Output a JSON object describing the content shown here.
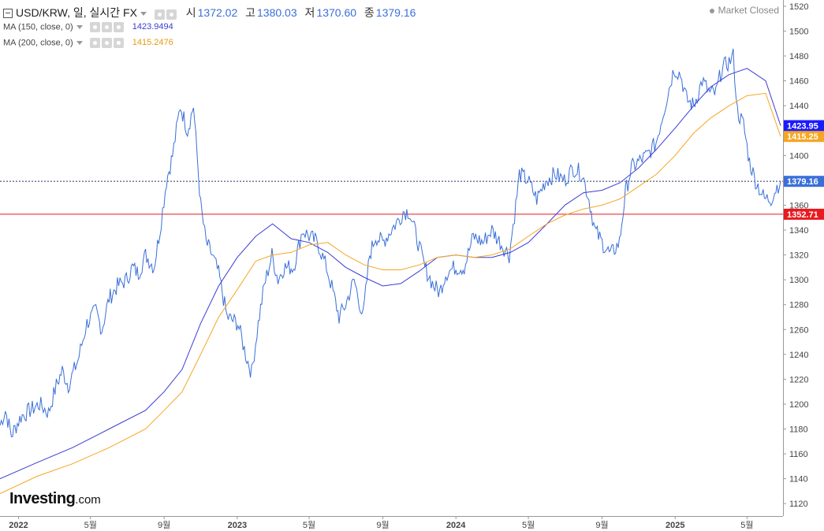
{
  "header": {
    "symbol": "USD/KRW, 일, 실시간 FX",
    "open_label": "시",
    "open": "1372.02",
    "high_label": "고",
    "high": "1380.03",
    "low_label": "저",
    "low": "1370.60",
    "close_label": "종",
    "close": "1379.16",
    "market_status": "Market Closed"
  },
  "indicators": [
    {
      "label": "MA (150, close, 0)",
      "value": "1423.9494",
      "color": "#3b3bd6"
    },
    {
      "label": "MA (200, close, 0)",
      "value": "1415.2476",
      "color": "#f5a623"
    }
  ],
  "logo": {
    "main": "Investing",
    "suffix": ".com"
  },
  "chart_data": {
    "type": "line",
    "xlim": [
      "2021-12-01",
      "2025-06-30"
    ],
    "ylim": [
      1110,
      1525
    ],
    "yticks": [
      1120,
      1140,
      1160,
      1180,
      1200,
      1220,
      1240,
      1260,
      1280,
      1300,
      1320,
      1340,
      1360,
      1380,
      1400,
      1420,
      1440,
      1460,
      1480,
      1500,
      1520
    ],
    "xticks": [
      {
        "date": "2022-01-01",
        "label": "2022",
        "bold": true
      },
      {
        "date": "2022-05-01",
        "label": "5월",
        "bold": false
      },
      {
        "date": "2022-09-01",
        "label": "9월",
        "bold": false
      },
      {
        "date": "2023-01-01",
        "label": "2023",
        "bold": true
      },
      {
        "date": "2023-05-01",
        "label": "5월",
        "bold": false
      },
      {
        "date": "2023-09-01",
        "label": "9월",
        "bold": false
      },
      {
        "date": "2024-01-01",
        "label": "2024",
        "bold": true
      },
      {
        "date": "2024-05-01",
        "label": "5월",
        "bold": false
      },
      {
        "date": "2024-09-01",
        "label": "9월",
        "bold": false
      },
      {
        "date": "2025-01-01",
        "label": "2025",
        "bold": true
      },
      {
        "date": "2025-05-01",
        "label": "5월",
        "bold": false
      }
    ],
    "series": [
      {
        "color": "#3a6fd8",
        "x": [
          "2021-12-01",
          "2021-12-10",
          "2021-12-20",
          "2022-01-05",
          "2022-01-20",
          "2022-02-05",
          "2022-02-20",
          "2022-03-05",
          "2022-03-15",
          "2022-03-25",
          "2022-04-10",
          "2022-04-25",
          "2022-05-10",
          "2022-05-20",
          "2022-06-01",
          "2022-06-15",
          "2022-06-30",
          "2022-07-10",
          "2022-07-20",
          "2022-08-01",
          "2022-08-15",
          "2022-08-25",
          "2022-09-05",
          "2022-09-15",
          "2022-09-28",
          "2022-10-10",
          "2022-10-20",
          "2022-11-01",
          "2022-11-10",
          "2022-11-20",
          "2022-12-01",
          "2022-12-15",
          "2023-01-02",
          "2023-01-15",
          "2023-01-25",
          "2023-02-05",
          "2023-02-15",
          "2023-02-28",
          "2023-03-10",
          "2023-03-20",
          "2023-04-05",
          "2023-04-20",
          "2023-05-01",
          "2023-05-15",
          "2023-05-30",
          "2023-06-10",
          "2023-06-20",
          "2023-07-01",
          "2023-07-15",
          "2023-07-30",
          "2023-08-10",
          "2023-08-20",
          "2023-09-01",
          "2023-09-15",
          "2023-09-30",
          "2023-10-05",
          "2023-10-15",
          "2023-10-30",
          "2023-11-10",
          "2023-11-25",
          "2023-12-05",
          "2023-12-15",
          "2023-12-30",
          "2024-01-15",
          "2024-01-30",
          "2024-02-15",
          "2024-03-01",
          "2024-03-15",
          "2024-03-30",
          "2024-04-10",
          "2024-04-16",
          "2024-04-30",
          "2024-05-15",
          "2024-05-30",
          "2024-06-15",
          "2024-06-30",
          "2024-07-15",
          "2024-07-30",
          "2024-08-10",
          "2024-08-20",
          "2024-09-01",
          "2024-09-15",
          "2024-09-30",
          "2024-10-10",
          "2024-10-20",
          "2024-11-01",
          "2024-11-15",
          "2024-11-30",
          "2024-12-10",
          "2024-12-20",
          "2024-12-30",
          "2025-01-10",
          "2025-01-20",
          "2025-02-01",
          "2025-02-15",
          "2025-02-28",
          "2025-03-10",
          "2025-03-20",
          "2025-04-01",
          "2025-04-08",
          "2025-04-15",
          "2025-04-25",
          "2025-05-05",
          "2025-05-15",
          "2025-05-30",
          "2025-06-10",
          "2025-06-20",
          "2025-06-26"
        ],
        "values": [
          1183,
          1195,
          1175,
          1190,
          1195,
          1200,
          1193,
          1215,
          1227,
          1215,
          1235,
          1265,
          1275,
          1260,
          1285,
          1295,
          1300,
          1310,
          1305,
          1320,
          1310,
          1340,
          1380,
          1400,
          1440,
          1420,
          1440,
          1360,
          1330,
          1320,
          1305,
          1270,
          1265,
          1240,
          1225,
          1265,
          1295,
          1320,
          1300,
          1310,
          1310,
          1340,
          1335,
          1330,
          1310,
          1290,
          1270,
          1280,
          1300,
          1270,
          1320,
          1335,
          1330,
          1340,
          1350,
          1355,
          1355,
          1330,
          1310,
          1295,
          1290,
          1305,
          1310,
          1310,
          1335,
          1330,
          1340,
          1330,
          1320,
          1360,
          1385,
          1380,
          1365,
          1380,
          1385,
          1380,
          1390,
          1385,
          1365,
          1340,
          1330,
          1320,
          1330,
          1370,
          1390,
          1395,
          1400,
          1410,
          1430,
          1450,
          1470,
          1465,
          1445,
          1440,
          1460,
          1450,
          1450,
          1470,
          1475,
          1480,
          1435,
          1425,
          1395,
          1380,
          1365,
          1365,
          1375,
          1379.16
        ]
      },
      {
        "name": "MA (150, close, 0)",
        "color": "#3b3bd6",
        "x": [
          "2021-12-01",
          "2022-02-01",
          "2022-04-01",
          "2022-06-01",
          "2022-08-01",
          "2022-09-01",
          "2022-10-01",
          "2022-11-01",
          "2022-12-01",
          "2023-01-01",
          "2023-02-01",
          "2023-03-01",
          "2023-04-01",
          "2023-05-01",
          "2023-06-01",
          "2023-07-01",
          "2023-08-01",
          "2023-09-01",
          "2023-10-01",
          "2023-11-01",
          "2023-12-01",
          "2024-01-01",
          "2024-02-01",
          "2024-03-01",
          "2024-04-01",
          "2024-05-01",
          "2024-06-01",
          "2024-07-01",
          "2024-08-01",
          "2024-09-01",
          "2024-10-01",
          "2024-11-01",
          "2024-12-01",
          "2025-01-01",
          "2025-02-01",
          "2025-03-01",
          "2025-04-01",
          "2025-05-01",
          "2025-06-01",
          "2025-06-26"
        ],
        "values": [
          1140,
          1153,
          1165,
          1180,
          1195,
          1210,
          1228,
          1265,
          1295,
          1318,
          1335,
          1345,
          1333,
          1330,
          1322,
          1310,
          1302,
          1295,
          1297,
          1307,
          1318,
          1320,
          1318,
          1318,
          1322,
          1330,
          1345,
          1360,
          1370,
          1372,
          1378,
          1390,
          1405,
          1422,
          1440,
          1455,
          1465,
          1470,
          1460,
          1423.95
        ]
      },
      {
        "name": "MA (200, close, 0)",
        "color": "#f5a623",
        "x": [
          "2021-12-01",
          "2022-02-01",
          "2022-04-01",
          "2022-06-01",
          "2022-08-01",
          "2022-09-01",
          "2022-10-01",
          "2022-11-01",
          "2022-12-01",
          "2023-01-01",
          "2023-02-01",
          "2023-03-01",
          "2023-04-01",
          "2023-05-01",
          "2023-06-01",
          "2023-07-01",
          "2023-08-01",
          "2023-09-01",
          "2023-10-01",
          "2023-11-01",
          "2023-12-01",
          "2024-01-01",
          "2024-02-01",
          "2024-03-01",
          "2024-04-01",
          "2024-05-01",
          "2024-06-01",
          "2024-07-01",
          "2024-08-01",
          "2024-09-01",
          "2024-10-01",
          "2024-11-01",
          "2024-12-01",
          "2025-01-01",
          "2025-02-01",
          "2025-03-01",
          "2025-04-01",
          "2025-05-01",
          "2025-06-01",
          "2025-06-26"
        ],
        "values": [
          1128,
          1142,
          1152,
          1165,
          1180,
          1195,
          1210,
          1240,
          1270,
          1292,
          1315,
          1320,
          1322,
          1328,
          1330,
          1320,
          1312,
          1308,
          1308,
          1312,
          1318,
          1320,
          1318,
          1320,
          1325,
          1335,
          1345,
          1352,
          1357,
          1360,
          1365,
          1375,
          1385,
          1400,
          1418,
          1430,
          1440,
          1448,
          1450,
          1415.25
        ]
      }
    ],
    "hlines": [
      {
        "value": 1379.16,
        "style": "dotted",
        "color": "#223366",
        "label": "1379.16",
        "label_bg": "#3a6fd8"
      },
      {
        "value": 1352.71,
        "style": "solid",
        "color": "#e8191f",
        "label": "1352.71",
        "label_bg": "#e8191f"
      }
    ],
    "price_labels": [
      {
        "value": 1423.95,
        "label": "1423.95",
        "bg": "#1a1aff"
      },
      {
        "value": 1415.25,
        "label": "1415.25",
        "bg": "#f5a623"
      }
    ]
  }
}
